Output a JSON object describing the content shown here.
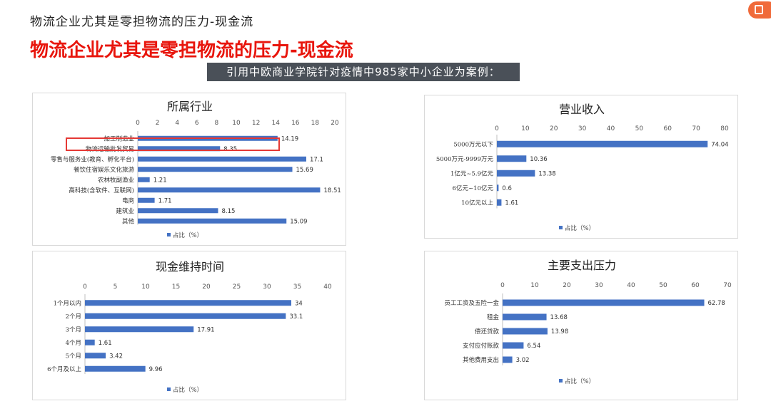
{
  "page": {
    "small_title": "物流企业尤其是零担物流的压力-现金流",
    "big_title": "物流企业尤其是零担物流的压力-现金流",
    "banner": "引用中欧商业学院针对疫情中985家中小企业为案例："
  },
  "colors": {
    "bar": "#4472c4",
    "accent": "#e8150c",
    "banner_bg": "#4a5058",
    "highlight": "#e53935"
  },
  "chart_data": [
    {
      "id": "industry",
      "type": "bar",
      "orientation": "horizontal",
      "title": "所属行业",
      "categories": [
        "加工制造业",
        "物流运输批发贸易",
        "零售与服务业(教育、孵化平台)",
        "餐饮住宿娱乐文化旅游",
        "农林牧副渔业",
        "高科技(含软件、互联网)",
        "电商",
        "建筑业",
        "其他"
      ],
      "values": [
        14.19,
        8.35,
        17.1,
        15.69,
        1.21,
        18.51,
        1.71,
        8.15,
        15.09
      ],
      "xlim": [
        0,
        20
      ],
      "ticks": [
        0,
        2,
        4,
        6,
        8,
        10,
        12,
        14,
        16,
        18,
        20
      ],
      "legend": "占比（%）",
      "legend_position": "bottom",
      "highlight_category": "物流运输批发贸易"
    },
    {
      "id": "revenue",
      "type": "bar",
      "orientation": "horizontal",
      "title": "营业收入",
      "categories": [
        "5000万元以下",
        "5000万元-9999万元",
        "1亿元~5.9亿元",
        "6亿元~10亿元",
        "10亿元以上"
      ],
      "values": [
        74.04,
        10.36,
        13.38,
        0.6,
        1.61
      ],
      "xlim": [
        0,
        80
      ],
      "ticks": [
        0,
        10,
        20,
        30,
        40,
        50,
        60,
        70,
        80
      ],
      "legend": "占比（%）",
      "legend_position": "bottom"
    },
    {
      "id": "cash",
      "type": "bar",
      "orientation": "horizontal",
      "title": "现金维持时间",
      "categories": [
        "1个月以内",
        "2个月",
        "3个月",
        "4个月",
        "5个月",
        "6个月及以上"
      ],
      "values": [
        34,
        33.1,
        17.91,
        1.61,
        3.42,
        9.96
      ],
      "xlim": [
        0,
        40
      ],
      "ticks": [
        0,
        5,
        10,
        15,
        20,
        25,
        30,
        35,
        40
      ],
      "legend": "占比（%）",
      "legend_position": "bottom"
    },
    {
      "id": "expense",
      "type": "bar",
      "orientation": "horizontal",
      "title": "主要支出压力",
      "categories": [
        "员工工资及五险一金",
        "租金",
        "偿还贷款",
        "支付应付账款",
        "其他费用支出"
      ],
      "values": [
        62.78,
        13.68,
        13.98,
        6.54,
        3.02
      ],
      "xlim": [
        0,
        70
      ],
      "ticks": [
        0,
        10,
        20,
        30,
        40,
        50,
        60,
        70
      ],
      "legend": "占比（%）",
      "legend_position": "bottom"
    }
  ]
}
